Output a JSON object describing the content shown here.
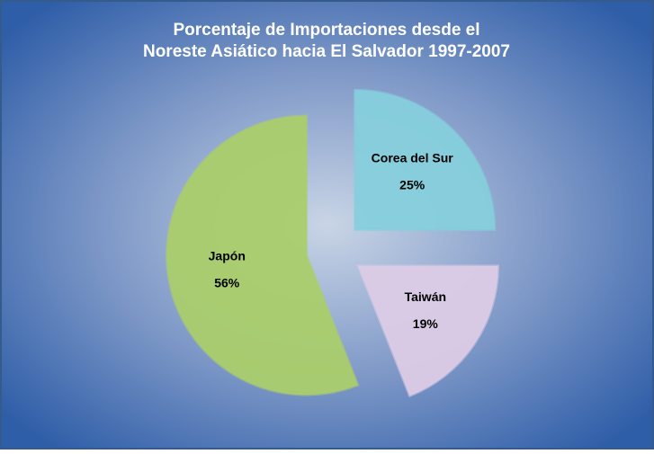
{
  "chart_data": {
    "type": "pie",
    "title": [
      "Porcentaje de Importaciones desde el",
      "Noreste Asiático hacia El Salvador 1997-2007"
    ],
    "categories": [
      "Corea del Sur",
      "Taiwán",
      "Japón"
    ],
    "values": [
      25,
      19,
      56
    ],
    "value_labels": [
      "25%",
      "19%",
      "56%"
    ],
    "colors": [
      "#86cfdc",
      "#dccbe6",
      "#aacd6c"
    ]
  }
}
